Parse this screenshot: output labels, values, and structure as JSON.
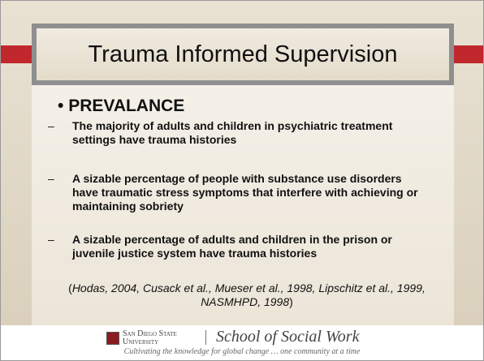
{
  "slide": {
    "title": "Trauma Informed Supervision",
    "heading": "PREVALANCE",
    "bullets": [
      "The majority of adults and children in psychiatric treatment settings have trauma histories",
      "A sizable percentage of people with substance use disorders have traumatic stress symptoms that interfere with achieving or maintaining sobriety",
      "A sizable percentage of adults and children in the prison or juvenile justice system have trauma histories"
    ],
    "citation": {
      "open": "(",
      "text": "Hodas, 2004, Cusack et al., Mueser et al., 1998, Lipschitz et al., 1999, NASMHPD, 1998",
      "close": ")"
    }
  },
  "footer": {
    "logo_line1": "San Diego State",
    "logo_line2": "University",
    "school": "School of Social Work",
    "tagline": "Cultivating the knowledge for global change … one community at a time"
  }
}
